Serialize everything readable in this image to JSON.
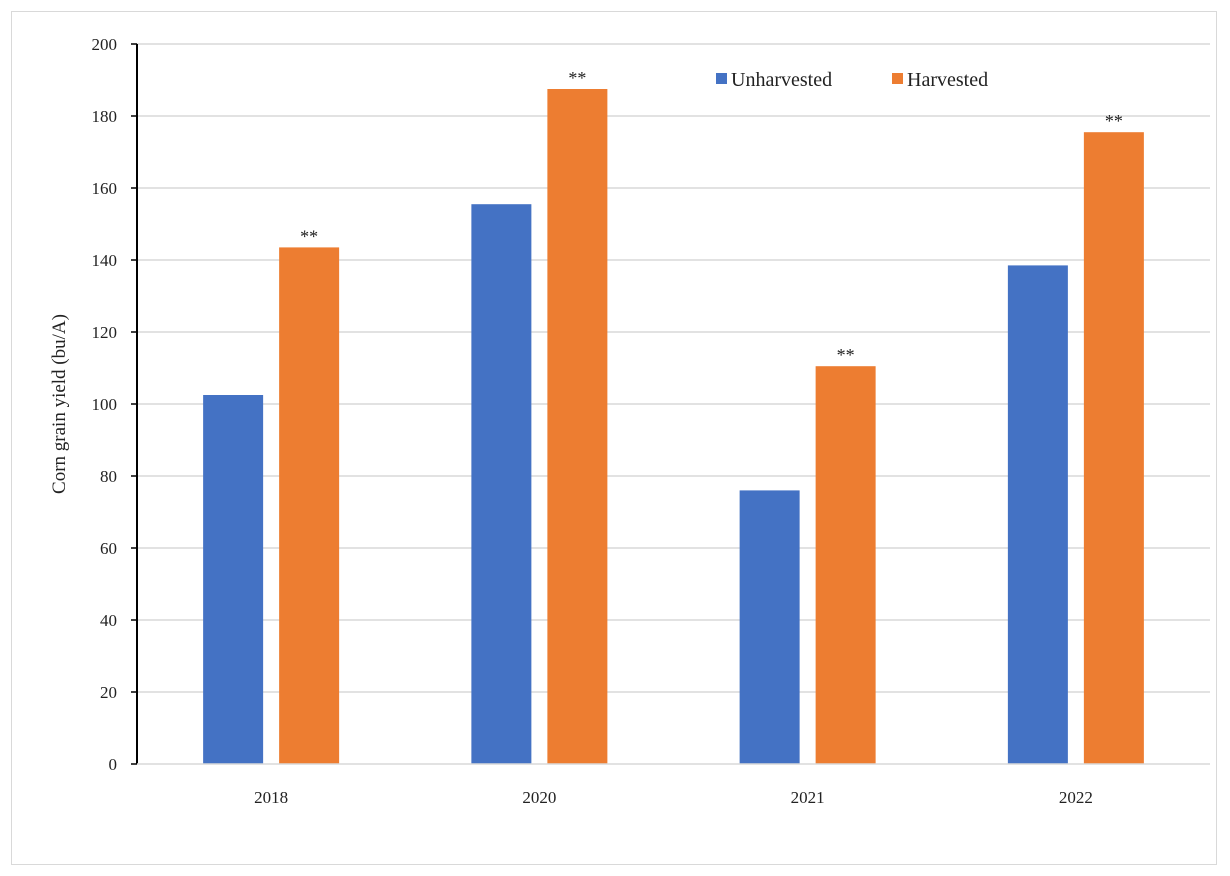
{
  "chart_data": {
    "type": "bar",
    "categories": [
      "2018",
      "2020",
      "2021",
      "2022"
    ],
    "series": [
      {
        "name": "Unharvested",
        "color": "#4472C4",
        "values": [
          102.5,
          155.5,
          76,
          138.5
        ],
        "labels": [
          "",
          "",
          "",
          ""
        ]
      },
      {
        "name": "Harvested",
        "color": "#ED7D31",
        "values": [
          143.5,
          187.5,
          110.5,
          175.5
        ],
        "labels": [
          "**",
          "**",
          "**",
          "**"
        ]
      }
    ],
    "title": "",
    "xlabel": "",
    "ylabel": "Corn grain yield  (bu/A)",
    "ylim": [
      0,
      200
    ],
    "yticks": [
      "0",
      "20",
      "40",
      "60",
      "80",
      "100",
      "120",
      "140",
      "160",
      "180",
      "200"
    ],
    "grid": true,
    "legend": "top-right"
  }
}
